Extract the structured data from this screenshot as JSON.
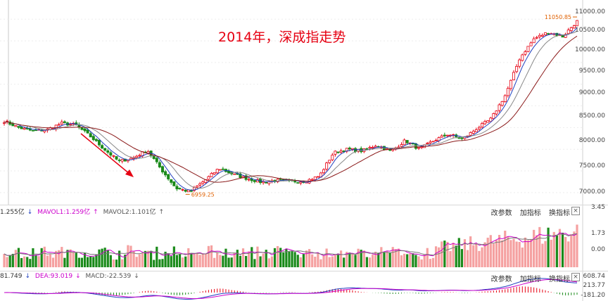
{
  "title": "2014年，深成指走势",
  "colors": {
    "up": "#e60012",
    "down": "#1a8a1a",
    "ma5": "#1f3fbf",
    "ma10": "#888888",
    "ma20": "#8b1a1a",
    "title": "#e60012",
    "arrow": "#e60012"
  },
  "main_chart": {
    "y_axis": [
      "11000.00",
      "10500.00",
      "10000.00",
      "9500.00",
      "9000.00",
      "8500.00",
      "8000.00",
      "7500.00",
      "7000.00"
    ],
    "high_label": "11050.85",
    "low_label": "6959.25"
  },
  "volume_panel": {
    "indicators": [
      "1.255亿",
      "MAVOL1:1.259亿",
      "MAVOL2:1.101亿"
    ],
    "y_axis": [
      "3.45",
      "1.73",
      "0.00"
    ],
    "tools": [
      "改参数",
      "加指标",
      "换指标"
    ],
    "close": "×"
  },
  "macd_panel": {
    "indicators": [
      "81.749",
      "DEA:93.019",
      "MACD:-22.539"
    ],
    "y_axis": [
      "608.74",
      "213.77",
      "-181.20"
    ],
    "tools": [
      "改参数",
      "加指标",
      "换指标"
    ],
    "close": "×"
  },
  "icons": {
    "down_arrow": "↓",
    "up_arrow": "↑"
  },
  "chart_data": {
    "type": "candlestick",
    "title": "2014年，深成指走势",
    "ylim": [
      6900,
      11150
    ],
    "y_ticks": [
      7000,
      7500,
      8000,
      8500,
      9000,
      9500,
      10000,
      10500,
      11000
    ],
    "annotations": [
      {
        "text": "11050.85",
        "value": 11050.85
      },
      {
        "text": "6959.25",
        "value": 6959.25
      }
    ],
    "series_approx": {
      "close_anchors": [
        8650,
        8500,
        8420,
        8450,
        8600,
        8560,
        8300,
        8000,
        7720,
        7800,
        7980,
        7520,
        7100,
        7020,
        7280,
        7560,
        7420,
        7320,
        7240,
        7280,
        7260,
        7260,
        7380,
        7920,
        8000,
        7960,
        8100,
        7950,
        8200,
        8000,
        8200,
        8350,
        8230,
        8480,
        8700,
        9250,
        10100,
        10550,
        10700,
        10600,
        10950
      ]
    }
  }
}
